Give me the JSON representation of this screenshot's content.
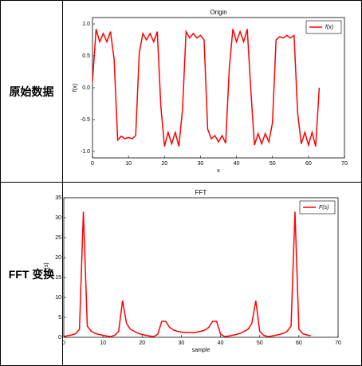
{
  "table": {
    "rows": [
      {
        "label": "原始数据"
      },
      {
        "label": "FFT 变换"
      }
    ]
  },
  "chart_data": [
    {
      "type": "line",
      "title": "Origin",
      "xlabel": "x",
      "ylabel": "f(x)",
      "x": [
        0,
        1,
        2,
        3,
        4,
        5,
        6,
        7,
        8,
        9,
        10,
        11,
        12,
        13,
        14,
        15,
        16,
        17,
        18,
        19,
        20,
        21,
        22,
        23,
        24,
        25,
        26,
        27,
        28,
        29,
        30,
        31,
        32,
        33,
        34,
        35,
        36,
        37,
        38,
        39,
        40,
        41,
        42,
        43,
        44,
        45,
        46,
        47,
        48,
        49,
        50,
        51,
        52,
        53,
        54,
        55,
        56,
        57,
        58,
        59,
        60,
        61,
        62,
        63
      ],
      "series": [
        {
          "name": "f(x)",
          "color": "#ff0000",
          "values": [
            0.1,
            0.92,
            0.72,
            0.85,
            0.72,
            0.88,
            0.45,
            -0.82,
            -0.76,
            -0.8,
            -0.78,
            -0.8,
            -0.75,
            0.55,
            0.85,
            0.75,
            0.85,
            0.72,
            0.88,
            -0.3,
            -0.92,
            -0.7,
            -0.88,
            -0.7,
            -0.92,
            -0.35,
            0.88,
            0.78,
            0.85,
            0.78,
            0.82,
            0.75,
            -0.65,
            -0.8,
            -0.75,
            -0.85,
            -0.75,
            -0.87,
            0.3,
            0.92,
            0.72,
            0.88,
            0.72,
            0.92,
            -0.05,
            -0.9,
            -0.72,
            -0.88,
            -0.72,
            -0.85,
            -0.55,
            0.75,
            0.8,
            0.78,
            0.82,
            0.78,
            0.82,
            -0.4,
            -0.88,
            -0.7,
            -0.9,
            -0.7,
            -0.92,
            0.0
          ]
        }
      ],
      "xlim": [
        0,
        70
      ],
      "xticks": [
        0,
        10,
        20,
        30,
        40,
        50,
        60,
        70
      ],
      "ylim": [
        -1.1,
        1.1
      ],
      "yticks": [
        {
          "value": -1,
          "label": "-1.0"
        },
        {
          "value": -0.5,
          "label": "-0.5"
        },
        {
          "value": 0,
          "label": "0.0"
        },
        {
          "value": 0.5,
          "label": "0.5"
        },
        {
          "value": 1,
          "label": "1.0"
        }
      ],
      "legend": "upper right"
    },
    {
      "type": "line",
      "title": "FFT",
      "xlabel": "sample",
      "ylabel": "F(s)",
      "x": [
        0,
        1,
        2,
        3,
        4,
        5,
        6,
        7,
        8,
        9,
        10,
        11,
        12,
        13,
        14,
        15,
        16,
        17,
        18,
        19,
        20,
        21,
        22,
        23,
        24,
        25,
        26,
        27,
        28,
        29,
        30,
        31,
        32,
        33,
        34,
        35,
        36,
        37,
        38,
        39,
        40,
        41,
        42,
        43,
        44,
        45,
        46,
        47,
        48,
        49,
        50,
        51,
        52,
        53,
        54,
        55,
        56,
        57,
        58,
        59,
        60,
        61,
        62,
        63
      ],
      "series": [
        {
          "name": "F(s)",
          "color": "#ff0000",
          "values": [
            0.2,
            0.4,
            0.6,
            0.9,
            2.0,
            31.5,
            2.8,
            1.5,
            1.0,
            0.7,
            0.5,
            0.3,
            0.2,
            0.5,
            1.5,
            9.2,
            3.5,
            2.0,
            1.5,
            1.0,
            0.7,
            0.5,
            0.3,
            0.2,
            0.8,
            4.0,
            4.0,
            2.5,
            1.8,
            1.5,
            1.3,
            1.2,
            1.2,
            1.2,
            1.3,
            1.5,
            1.8,
            2.5,
            4.0,
            4.0,
            0.8,
            0.2,
            0.3,
            0.5,
            0.7,
            1.0,
            1.5,
            2.0,
            3.5,
            9.2,
            1.5,
            0.5,
            0.2,
            0.3,
            0.5,
            0.7,
            1.0,
            1.5,
            2.8,
            31.5,
            2.0,
            0.9,
            0.6,
            0.4
          ]
        }
      ],
      "xlim": [
        0,
        70
      ],
      "xticks": [
        0,
        10,
        20,
        30,
        40,
        50,
        60,
        70
      ],
      "ylim": [
        0,
        35
      ],
      "yticks": [
        0,
        5,
        10,
        15,
        20,
        25,
        30,
        35
      ],
      "legend": "upper right"
    }
  ]
}
